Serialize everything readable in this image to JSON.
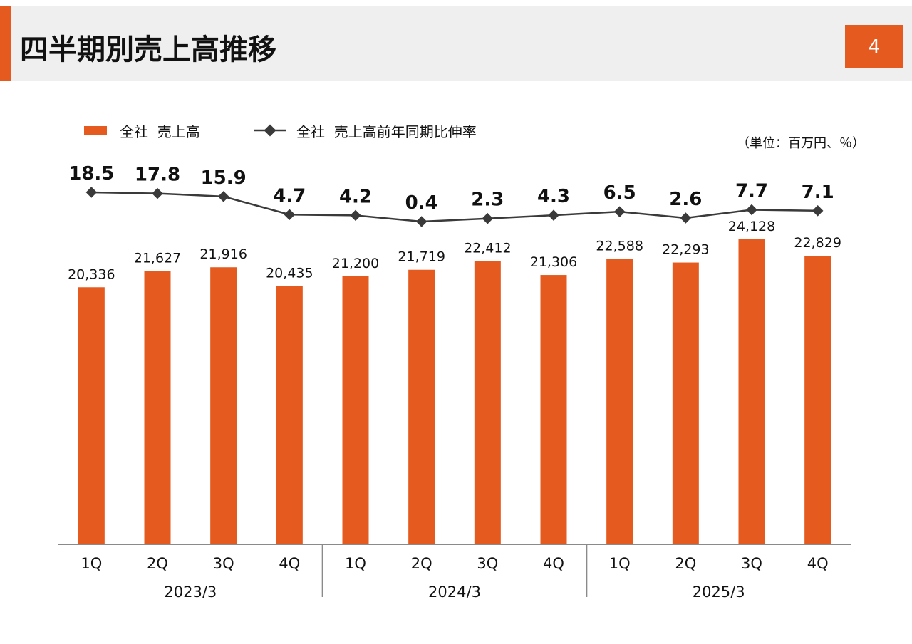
{
  "header": {
    "title": "四半期別売上高推移",
    "page_number": "4",
    "accent_color": "#e55a1e"
  },
  "legend": {
    "bar_label": "全社  売上高",
    "line_label": "全社  売上高前年同期比伸率"
  },
  "unit_note": "（単位：百万円、％）",
  "chart_data": {
    "type": "bar",
    "categories": [
      "1Q",
      "2Q",
      "3Q",
      "4Q",
      "1Q",
      "2Q",
      "3Q",
      "4Q",
      "1Q",
      "2Q",
      "3Q",
      "4Q"
    ],
    "groups": [
      {
        "label": "2023/3",
        "count": 4
      },
      {
        "label": "2024/3",
        "count": 4
      },
      {
        "label": "2025/3",
        "count": 4
      }
    ],
    "series": [
      {
        "name": "全社  売上高",
        "type": "bar",
        "color": "#e55a1e",
        "values": [
          20336,
          21627,
          21916,
          20435,
          21200,
          21719,
          22412,
          21306,
          22588,
          22293,
          24128,
          22829
        ],
        "labels": [
          "20,336",
          "21,627",
          "21,916",
          "20,435",
          "21,200",
          "21,719",
          "22,412",
          "21,306",
          "22,588",
          "22,293",
          "24,128",
          "22,829"
        ]
      },
      {
        "name": "全社  売上高前年同期比伸率",
        "type": "line",
        "color": "#3a3a3a",
        "values": [
          18.5,
          17.8,
          15.9,
          4.7,
          4.2,
          0.4,
          2.3,
          4.3,
          6.5,
          2.6,
          7.7,
          7.1
        ],
        "labels": [
          "18.5",
          "17.8",
          "15.9",
          "4.7",
          "4.2",
          "0.4",
          "2.3",
          "4.3",
          "6.5",
          "2.6",
          "7.7",
          "7.1"
        ]
      }
    ],
    "bar_ylim": [
      0,
      24128
    ],
    "line_ylim": [
      0.4,
      18.5
    ],
    "grid": false,
    "legend_position": "top-left"
  }
}
